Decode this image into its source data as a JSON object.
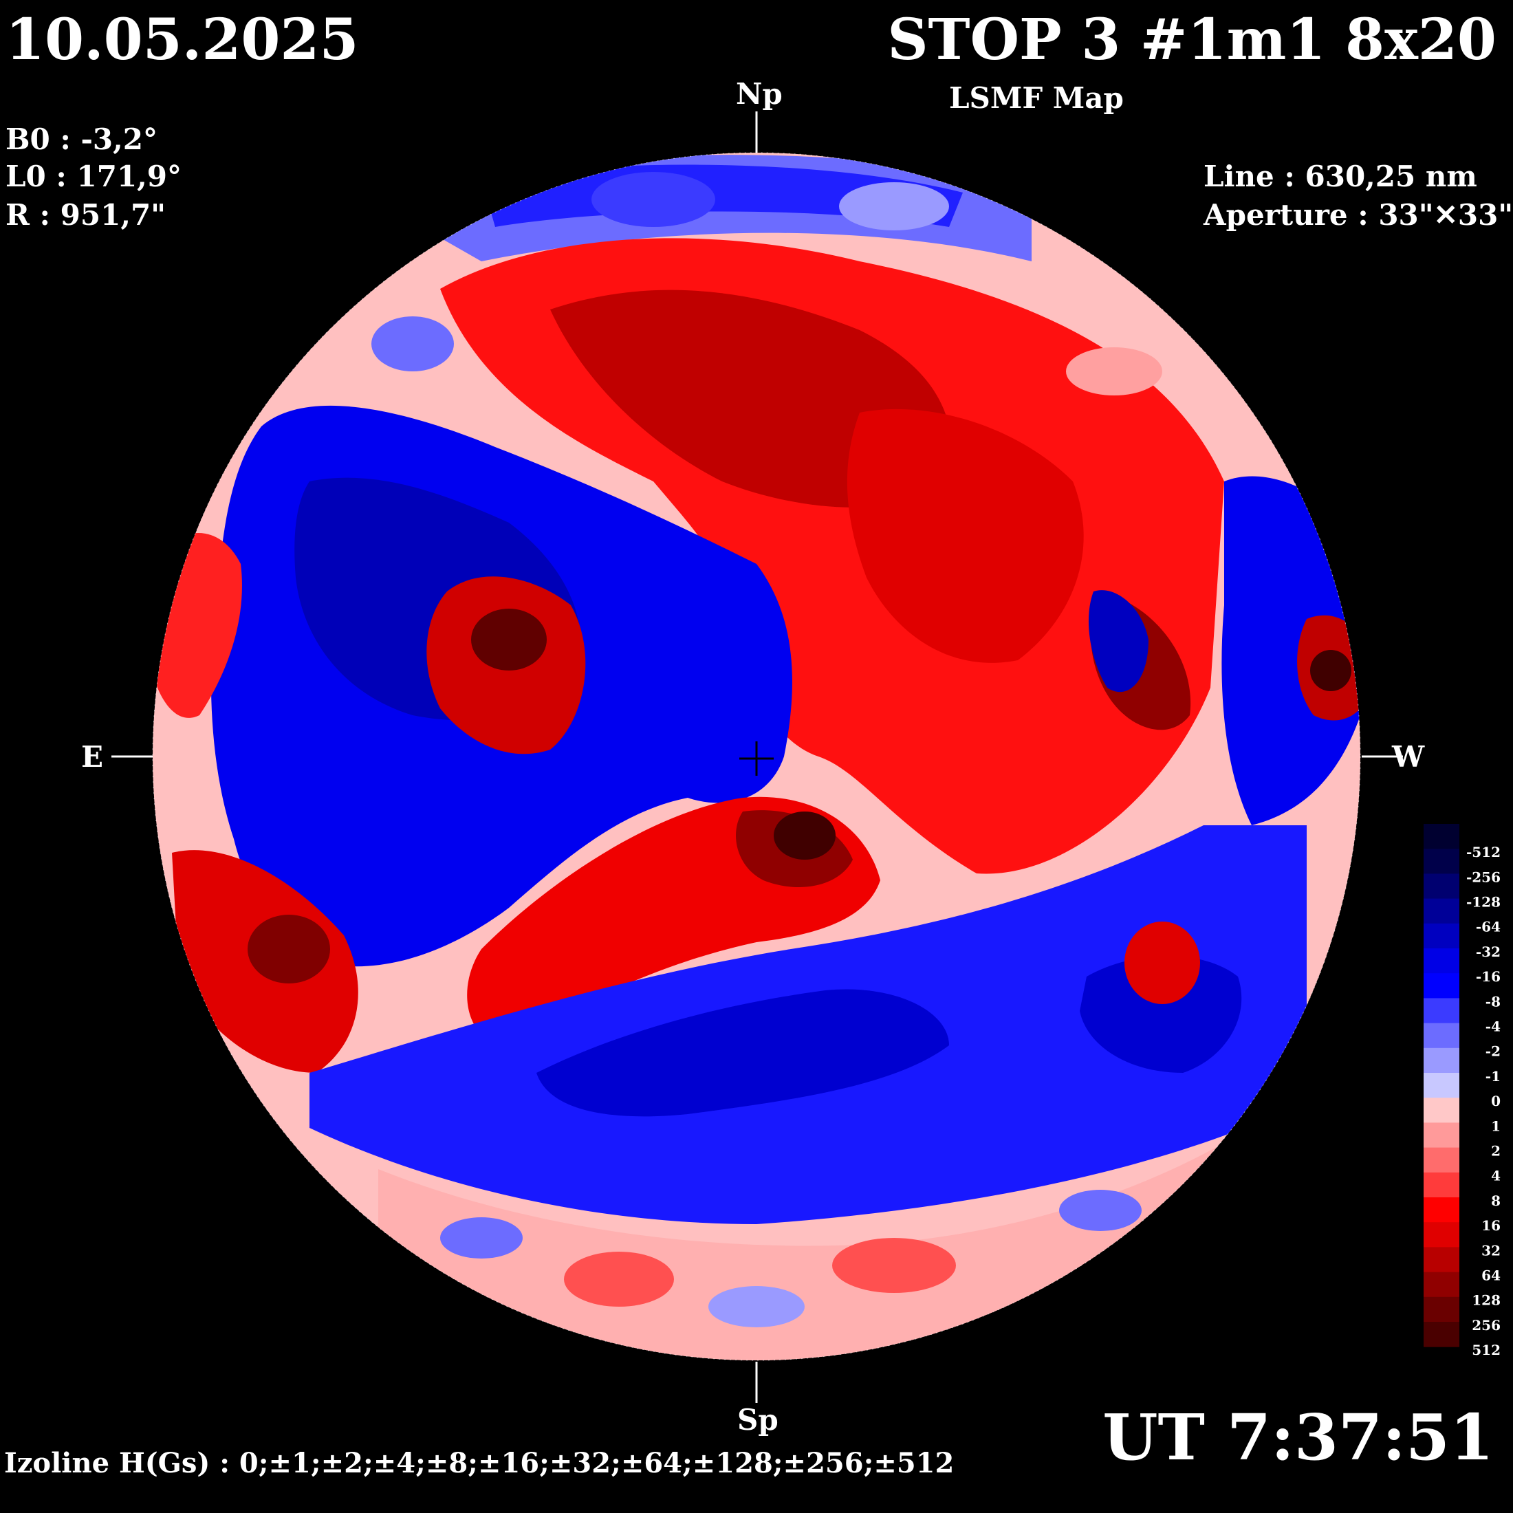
{
  "header": {
    "date": "10.05.2025",
    "title": "STOP 3 #1m1 8x20",
    "subtitle": "LSMF  Map"
  },
  "params": {
    "b0": "B0 : -3,2°",
    "l0": "L0 : 171,9°",
    "r": "R  : 951,7\""
  },
  "instrument": {
    "line": "Line :  630,25 nm",
    "aperture": "Aperture : 33\"✕33\""
  },
  "time": "UT 7:37:51",
  "izoline": "Izoline H(Gs) : 0;±1;±2;±4;±8;±16;±32;±64;±128;±256;±512",
  "compass": {
    "north": "Np",
    "south": "Sp",
    "east": "E",
    "west": "W"
  },
  "colors": {
    "positive_strong": "#5a0000",
    "positive": "#ff0000",
    "positive_weak": "#ffc8c8",
    "negative_weak": "#c8c8ff",
    "negative": "#0000ff",
    "negative_strong": "#00003c"
  },
  "scale": {
    "labels": [
      "-512",
      "-256",
      "-128",
      "-64",
      "-32",
      "-16",
      "-8",
      "-4",
      "-2",
      "-1",
      "0",
      "1",
      "2",
      "4",
      "8",
      "16",
      "32",
      "64",
      "128",
      "256",
      "512"
    ],
    "colors": [
      "#000030",
      "#00004a",
      "#000070",
      "#000098",
      "#0000c0",
      "#0000e6",
      "#0000ff",
      "#3b3bff",
      "#6c6cff",
      "#9a9aff",
      "#c8c8ff",
      "#ffc8c8",
      "#ff9a9a",
      "#ff6c6c",
      "#ff3b3b",
      "#ff0000",
      "#e00000",
      "#b80000",
      "#900000",
      "#6a0000",
      "#4a0000"
    ]
  }
}
